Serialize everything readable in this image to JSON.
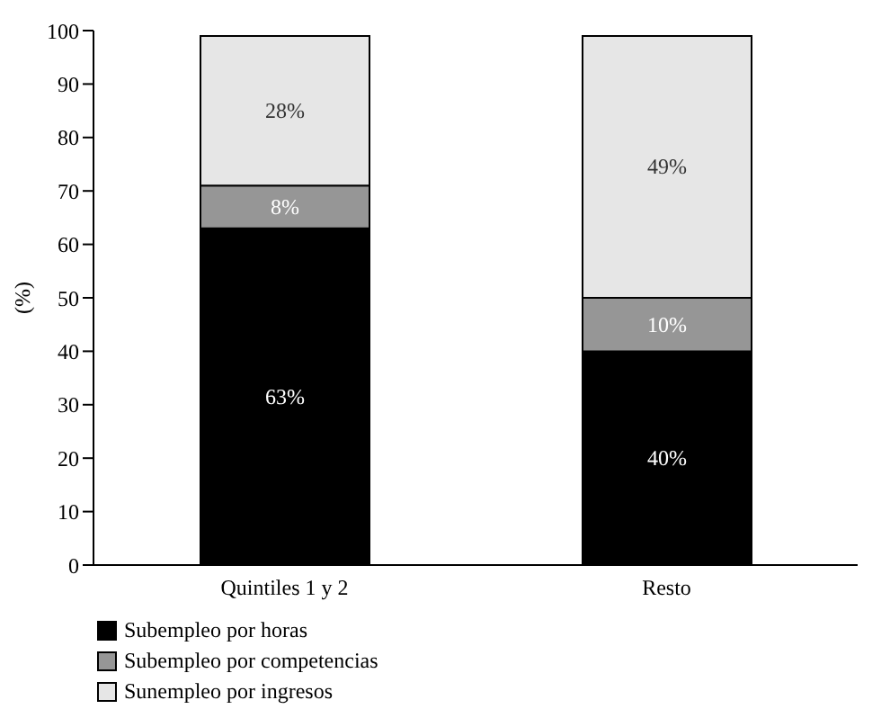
{
  "chart_data": {
    "type": "bar",
    "stacked": true,
    "ylabel": "(%)",
    "categories": [
      "Quintiles 1 y 2",
      "Resto"
    ],
    "series": [
      {
        "name": "Subempleo por horas",
        "color": "#000000",
        "values": [
          63,
          40
        ],
        "value_labels": [
          "63%",
          "40%"
        ]
      },
      {
        "name": "Subempleo por competencias",
        "color": "#969696",
        "values": [
          8,
          10
        ],
        "value_labels": [
          "8%",
          "10%"
        ]
      },
      {
        "name": "Sunempleo por ingresos",
        "color": "#e6e6e6",
        "values": [
          28,
          49
        ],
        "value_labels": [
          "28%",
          "49%"
        ]
      }
    ],
    "ylim": [
      0,
      100
    ],
    "yticks": [
      0,
      10,
      20,
      30,
      40,
      50,
      60,
      70,
      80,
      90,
      100
    ],
    "grid": false,
    "legend": "bottom left"
  }
}
